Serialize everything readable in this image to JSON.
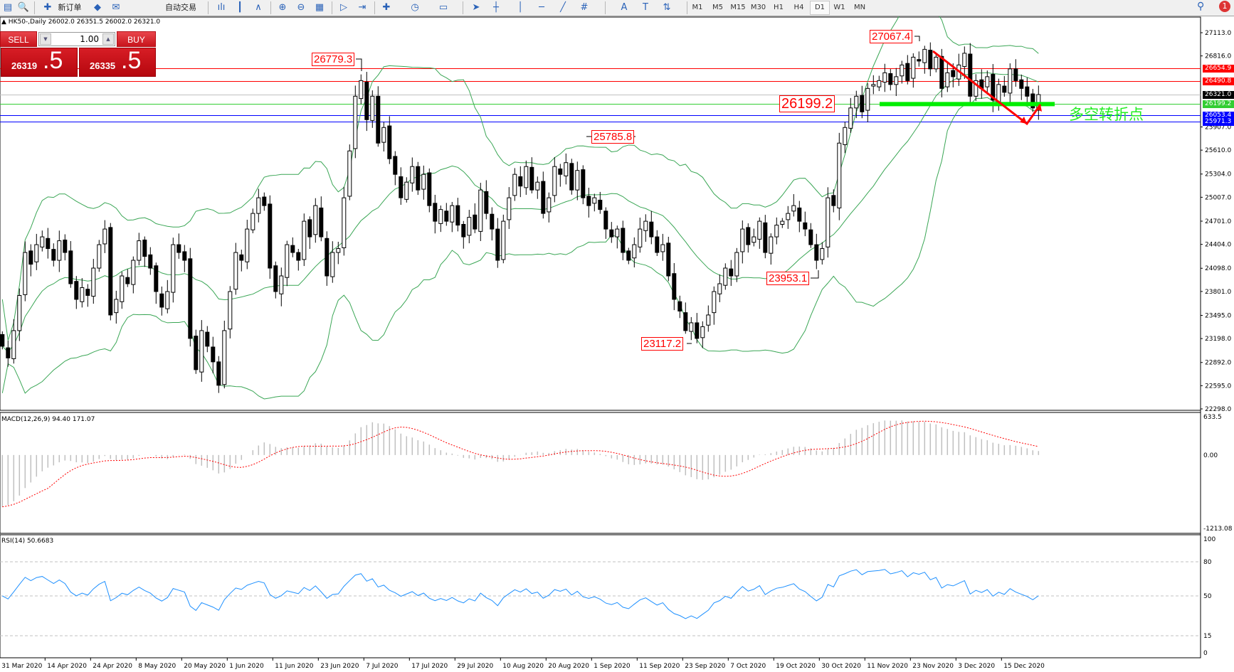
{
  "toolbar": {
    "new_order_label": "新订单",
    "auto_trading_label": "自动交易",
    "icons": [
      "new-chart-icon",
      "profiles-icon",
      "new-order-icon",
      "metaeditor-icon",
      "experts-icon",
      "bar-chart-icon",
      "candlestick-icon",
      "line-chart-icon",
      "zoom-in-icon",
      "zoom-out-icon",
      "tile-windows-icon",
      "auto-scroll-icon",
      "chart-shift-icon",
      "indicators-icon",
      "periods-icon",
      "templates-icon",
      "cursor-icon",
      "crosshair-icon",
      "vertical-line-icon",
      "horizontal-line-icon",
      "trendline-icon",
      "fibonacci-icon",
      "text-icon",
      "text-label-icon",
      "arrows-icon"
    ],
    "icon_glyphs": [
      "▤",
      "🔍",
      "✚",
      "◆",
      "✉",
      "ılı",
      "┃",
      "∧",
      "⊕",
      "⊖",
      "▦",
      "▷",
      "⇥",
      "✚",
      "◷",
      "▭",
      "➤",
      "┼",
      "│",
      "─",
      "╱",
      "#",
      "A",
      "T",
      "⇅"
    ],
    "timeframes": [
      "M1",
      "M5",
      "M15",
      "M30",
      "H1",
      "H4",
      "D1",
      "W1",
      "MN"
    ],
    "active_timeframe": "D1",
    "notification_count": "1"
  },
  "chart_header": {
    "symbol": "HK50-,Daily",
    "ohlc": "26002.0 26351.5 26002.0 26321.0"
  },
  "one_click": {
    "sell_label": "SELL",
    "buy_label": "BUY",
    "lot": "1.00",
    "bid_main": "26319",
    "bid_frac": ".5",
    "ask_main": "26335",
    "ask_frac": ".5"
  },
  "annotations": {
    "high_jul": "26779.3",
    "high_aug": "25785.8",
    "high_nov": "27067.4",
    "pivot": "26199.2",
    "low_sep": "23117.2",
    "low_oct": "23953.1",
    "pivot_text": "多空转折点"
  },
  "levels": [
    {
      "price": 26654.9,
      "label": "26654.9",
      "color": "#ff0000"
    },
    {
      "price": 26490.8,
      "label": "26490.8",
      "color": "#ff0000"
    },
    {
      "price": 26321.0,
      "label": "26321.0",
      "color": "#000000",
      "line": "#c0c0c0"
    },
    {
      "price": 26199.2,
      "label": "26199.2",
      "color": "#32cd32"
    },
    {
      "price": 26053.4,
      "label": "26053.4",
      "color": "#0000ff"
    },
    {
      "price": 25971.3,
      "label": "25971.3",
      "color": "#0000ff"
    }
  ],
  "colors": {
    "bands": "#3aa655",
    "macd_hist": "#c0c0c0",
    "macd_signal": "#ff0000",
    "rsi": "#1e90ff",
    "pivot_bar": "#00ee00",
    "trend_arrow": "#ff0000"
  },
  "chart_data": {
    "type": "candlestick",
    "symbol": "HK50-",
    "timeframe": "Daily",
    "price_ticks": [
      "27113.0",
      "26816.0",
      "25907.0",
      "25610.0",
      "25304.0",
      "25007.0",
      "24701.0",
      "24404.0",
      "24098.0",
      "23801.0",
      "23495.0",
      "23198.0",
      "22892.0",
      "22595.0",
      "22298.0"
    ],
    "ylim": [
      22298,
      27113
    ],
    "x_tick_labels": [
      "31 Mar 2020",
      "14 Apr 2020",
      "24 Apr 2020",
      "8 May 2020",
      "20 May 2020",
      "1 Jun 2020",
      "11 Jun 2020",
      "23 Jun 2020",
      "7 Jul 2020",
      "17 Jul 2020",
      "29 Jul 2020",
      "10 Aug 2020",
      "20 Aug 2020",
      "1 Sep 2020",
      "11 Sep 2020",
      "23 Sep 2020",
      "7 Oct 2020",
      "19 Oct 2020",
      "30 Oct 2020",
      "11 Nov 2020",
      "23 Nov 2020",
      "3 Dec 2020",
      "15 Dec 2020"
    ],
    "close": [
      23100,
      22950,
      23300,
      23750,
      24300,
      24150,
      24400,
      24500,
      24350,
      24200,
      24450,
      24300,
      23900,
      23700,
      23850,
      23750,
      24100,
      24400,
      24600,
      23500,
      23700,
      24000,
      23900,
      24200,
      24450,
      24250,
      24100,
      23800,
      23600,
      23800,
      24400,
      24300,
      24200,
      23200,
      22800,
      23300,
      23100,
      22900,
      22600,
      23300,
      23800,
      24300,
      24200,
      24600,
      24800,
      25000,
      24900,
      24100,
      23800,
      24000,
      24400,
      24300,
      24200,
      24700,
      24500,
      24900,
      24500,
      24000,
      24300,
      24350,
      25000,
      25600,
      26300,
      26500,
      26000,
      26300,
      25700,
      25900,
      25500,
      25300,
      25000,
      25200,
      25400,
      25100,
      25300,
      24900,
      24700,
      24850,
      24700,
      24900,
      24650,
      24500,
      24750,
      24600,
      25100,
      24800,
      24600,
      24200,
      24700,
      25000,
      25300,
      25150,
      25400,
      25100,
      25200,
      24800,
      25000,
      25400,
      25300,
      25450,
      25100,
      25350,
      25000,
      24900,
      25000,
      24850,
      24600,
      24500,
      24600,
      24300,
      24200,
      24400,
      24600,
      24700,
      24500,
      24300,
      24400,
      24000,
      23700,
      23550,
      23300,
      23400,
      23200,
      23350,
      23500,
      23800,
      23900,
      24100,
      24000,
      24300,
      24600,
      24400,
      24500,
      24700,
      24300,
      24500,
      24650,
      24700,
      24800,
      24900,
      24700,
      24600,
      24400,
      24200,
      24350,
      25000,
      24900,
      25700,
      25900,
      26150,
      26300,
      26100,
      26400,
      26450,
      26500,
      26600,
      26450,
      26550,
      26700,
      26500,
      26800,
      26750,
      26900,
      26650,
      26800,
      26400,
      26600,
      26550,
      26700,
      26850,
      26300,
      26500,
      26400,
      26550,
      26250,
      26450,
      26350,
      26650,
      26500,
      26400,
      26300,
      26150,
      26321
    ],
    "indicators": {
      "bollinger": {
        "period": 20,
        "deviation": 2
      },
      "macd": {
        "label": "MACD(12,26,9) 94.40 171.07",
        "ticks": [
          "633.5",
          "0.00",
          "-1213.08"
        ],
        "ylim": [
          -1213.08,
          633.5
        ]
      },
      "rsi": {
        "label": "RSI(14) 50.6683",
        "ticks": [
          "100",
          "80",
          "50",
          "15",
          "0"
        ],
        "levels": [
          80,
          50,
          15
        ]
      }
    }
  }
}
